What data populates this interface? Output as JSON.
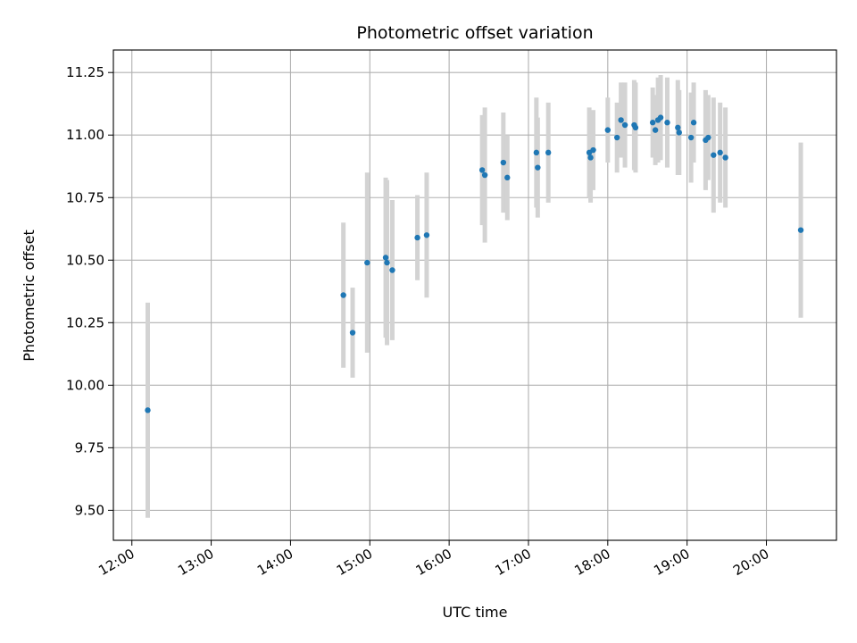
{
  "chart_data": {
    "type": "scatter",
    "title": "Photometric offset variation",
    "xlabel": "UTC time",
    "ylabel": "Photometric offset",
    "x_axis": "time",
    "xlim": [
      "11:46",
      "20:53"
    ],
    "ylim": [
      9.38,
      11.34
    ],
    "x_ticks": [
      "12:00",
      "13:00",
      "14:00",
      "15:00",
      "16:00",
      "17:00",
      "18:00",
      "19:00",
      "20:00"
    ],
    "y_ticks": [
      "9.50",
      "9.75",
      "10.00",
      "10.25",
      "10.50",
      "10.75",
      "11.00",
      "11.25"
    ],
    "grid": true,
    "errorbar_color": "#d3d3d3",
    "point_color": "#1f77b4",
    "series": [
      {
        "points": [
          {
            "time": "12:12",
            "y": 9.9,
            "err": 0.43
          },
          {
            "time": "14:40",
            "y": 10.36,
            "err": 0.29
          },
          {
            "time": "14:47",
            "y": 10.21,
            "err": 0.18
          },
          {
            "time": "14:58",
            "y": 10.49,
            "err": 0.36
          },
          {
            "time": "15:12",
            "y": 10.51,
            "err": 0.32
          },
          {
            "time": "15:13",
            "y": 10.49,
            "err": 0.33
          },
          {
            "time": "15:17",
            "y": 10.46,
            "err": 0.28
          },
          {
            "time": "15:36",
            "y": 10.59,
            "err": 0.17
          },
          {
            "time": "15:43",
            "y": 10.6,
            "err": 0.25
          },
          {
            "time": "16:25",
            "y": 10.86,
            "err": 0.22
          },
          {
            "time": "16:27",
            "y": 10.84,
            "err": 0.27
          },
          {
            "time": "16:41",
            "y": 10.89,
            "err": 0.2
          },
          {
            "time": "16:44",
            "y": 10.83,
            "err": 0.17
          },
          {
            "time": "17:06",
            "y": 10.93,
            "err": 0.22
          },
          {
            "time": "17:07",
            "y": 10.87,
            "err": 0.2
          },
          {
            "time": "17:15",
            "y": 10.93,
            "err": 0.2
          },
          {
            "time": "17:46",
            "y": 10.93,
            "err": 0.18
          },
          {
            "time": "17:47",
            "y": 10.91,
            "err": 0.18
          },
          {
            "time": "17:49",
            "y": 10.94,
            "err": 0.16
          },
          {
            "time": "18:00",
            "y": 11.02,
            "err": 0.13
          },
          {
            "time": "18:07",
            "y": 10.99,
            "err": 0.14
          },
          {
            "time": "18:10",
            "y": 11.06,
            "err": 0.15
          },
          {
            "time": "18:13",
            "y": 11.04,
            "err": 0.17
          },
          {
            "time": "18:20",
            "y": 11.04,
            "err": 0.18
          },
          {
            "time": "18:21",
            "y": 11.03,
            "err": 0.18
          },
          {
            "time": "18:34",
            "y": 11.05,
            "err": 0.14
          },
          {
            "time": "18:36",
            "y": 11.02,
            "err": 0.14
          },
          {
            "time": "18:38",
            "y": 11.06,
            "err": 0.17
          },
          {
            "time": "18:40",
            "y": 11.07,
            "err": 0.17
          },
          {
            "time": "18:45",
            "y": 11.05,
            "err": 0.18
          },
          {
            "time": "18:53",
            "y": 11.03,
            "err": 0.19
          },
          {
            "time": "18:54",
            "y": 11.01,
            "err": 0.17
          },
          {
            "time": "19:03",
            "y": 10.99,
            "err": 0.18
          },
          {
            "time": "19:05",
            "y": 11.05,
            "err": 0.16
          },
          {
            "time": "19:14",
            "y": 10.98,
            "err": 0.2
          },
          {
            "time": "19:16",
            "y": 10.99,
            "err": 0.17
          },
          {
            "time": "19:20",
            "y": 10.92,
            "err": 0.23
          },
          {
            "time": "19:25",
            "y": 10.93,
            "err": 0.2
          },
          {
            "time": "19:29",
            "y": 10.91,
            "err": 0.2
          },
          {
            "time": "20:26",
            "y": 10.62,
            "err": 0.35
          }
        ]
      }
    ]
  }
}
